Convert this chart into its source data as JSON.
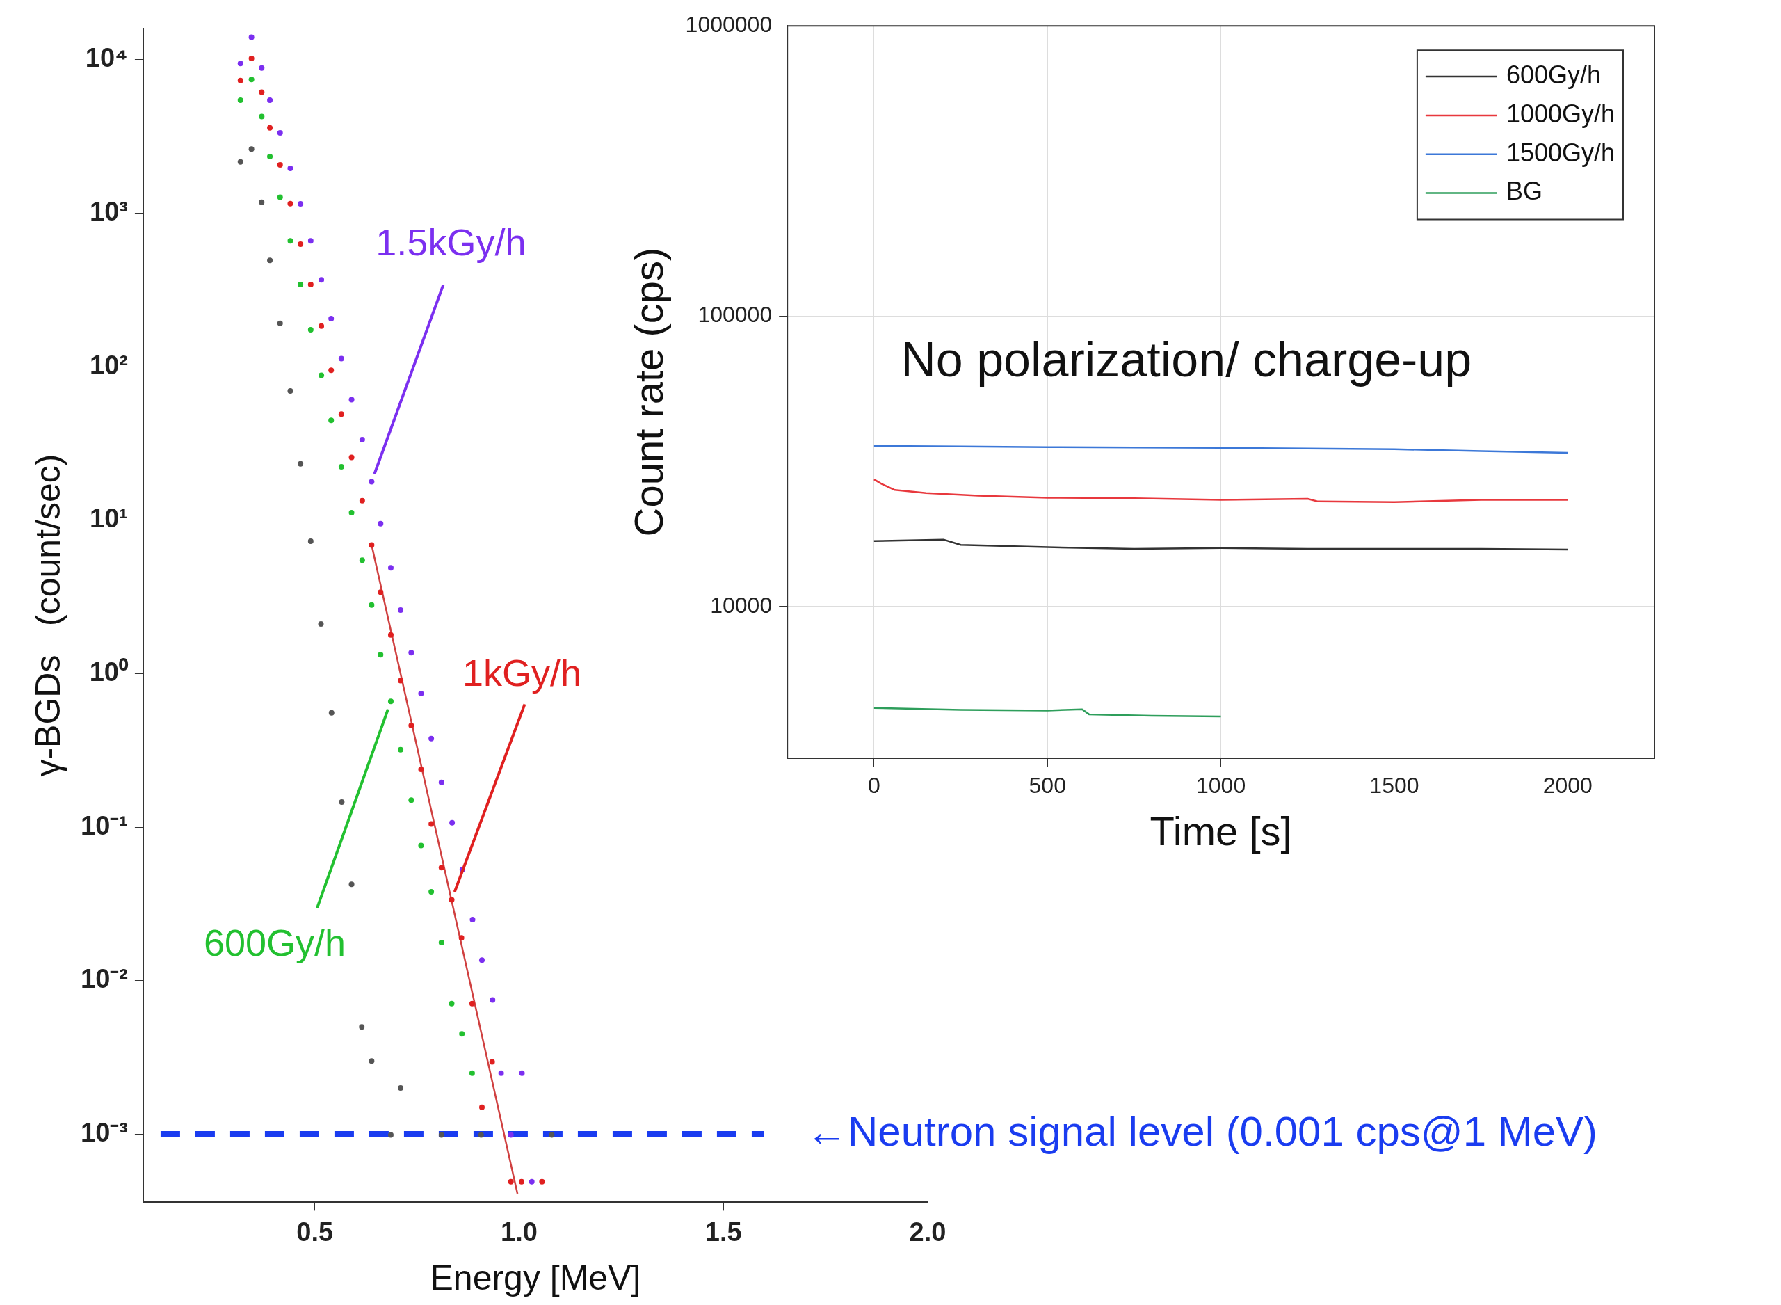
{
  "chart_data": [
    {
      "type": "scatter",
      "xlabel": "Energy [MeV]",
      "ylabel": "γ-BGDs   (count/sec)",
      "log": "y",
      "xlim": [
        0.08,
        2.0
      ],
      "xticks": [
        0.5,
        {
          "value": 1,
          "label": "1.0"
        },
        1.5,
        {
          "value": 2,
          "label": "2.0"
        }
      ],
      "ylim": [
        0.00036,
        16000
      ],
      "yticks": [
        {
          "value": 0.001,
          "label": "10⁻³"
        },
        {
          "value": 0.01,
          "label": "10⁻²"
        },
        {
          "value": 0.1,
          "label": "10⁻¹"
        },
        {
          "value": 1,
          "label": "10⁰"
        },
        {
          "value": 10,
          "label": "10¹"
        },
        {
          "value": 100,
          "label": "10²"
        },
        {
          "value": 1000,
          "label": "10³"
        },
        {
          "value": 10000,
          "label": "10⁴"
        }
      ],
      "marker": "circle",
      "series": [
        {
          "name": "1.5kGy/h",
          "color": "#7b2ff0",
          "x": [
            0.318,
            0.345,
            0.37,
            0.39,
            0.415,
            0.44,
            0.465,
            0.49,
            0.516,
            0.54,
            0.565,
            0.59,
            0.616,
            0.639,
            0.661,
            0.686,
            0.71,
            0.736,
            0.76,
            0.785,
            0.81,
            0.836,
            0.861,
            0.886,
            0.909,
            0.935,
            0.956,
            0.98,
            1.007,
            1.031
          ],
          "values": [
            9460,
            14000,
            8830,
            5450,
            3340,
            1960,
            1150,
            661,
            368,
            206,
            113,
            61,
            33.5,
            17.8,
            9.5,
            4.9,
            2.6,
            1.37,
            0.743,
            0.378,
            0.196,
            0.107,
            0.053,
            0.025,
            0.0136,
            0.0075,
            0.0025,
            0.00099,
            0.0025,
            0.00049
          ]
        },
        {
          "name": "1kGy/h",
          "color": "#e02020",
          "x": [
            0.318,
            0.345,
            0.37,
            0.39,
            0.415,
            0.44,
            0.465,
            0.49,
            0.516,
            0.54,
            0.565,
            0.59,
            0.616,
            0.639,
            0.661,
            0.686,
            0.71,
            0.736,
            0.76,
            0.785,
            0.81,
            0.835,
            0.859,
            0.885,
            0.909,
            0.934,
            0.98,
            1.006,
            1.056
          ],
          "values": [
            7310,
            10200,
            6150,
            3600,
            2065,
            1155,
            628,
            343,
            184,
            94.8,
            49.2,
            25.7,
            13.4,
            6.9,
            3.4,
            1.79,
            0.9,
            0.46,
            0.238,
            0.105,
            0.0546,
            0.0337,
            0.019,
            0.0071,
            0.0015,
            0.00296,
            0.00049,
            0.00049,
            0.00049
          ]
        },
        {
          "name": "600Gy/h",
          "color": "#22c030",
          "x": [
            0.318,
            0.345,
            0.37,
            0.39,
            0.415,
            0.44,
            0.465,
            0.49,
            0.516,
            0.54,
            0.565,
            0.59,
            0.616,
            0.639,
            0.661,
            0.686,
            0.71,
            0.736,
            0.76,
            0.785,
            0.81,
            0.835,
            0.86,
            0.885
          ],
          "values": [
            5450,
            7430,
            4260,
            2340,
            1270,
            661,
            343,
            174,
            87.9,
            44.7,
            22.3,
            11.2,
            5.5,
            2.8,
            1.33,
            0.66,
            0.32,
            0.15,
            0.076,
            0.038,
            0.0177,
            0.0071,
            0.0045,
            0.0025
          ]
        },
        {
          "color": "#555555",
          "x": [
            0.318,
            0.345,
            0.37,
            0.39,
            0.415,
            0.44,
            0.465,
            0.49,
            0.515,
            0.541,
            0.566,
            0.59,
            0.615,
            0.639,
            0.686,
            0.71,
            0.81,
            0.907,
            1.08
          ],
          "values": [
            2160,
            2620,
            1180,
            493,
            192,
            69.5,
            23.3,
            7.3,
            2.11,
            0.556,
            0.146,
            0.0425,
            0.005,
            0.003,
            0.00099,
            0.002,
            0.00099,
            0.00099,
            0.00099
          ]
        },
        {
          "type": "line",
          "marker": "none",
          "color": "#d04040",
          "x": [
            0.639,
            0.996
          ],
          "values": [
            6.9,
            0.00041
          ]
        }
      ],
      "ref_lines": [
        {
          "axis": "y",
          "value": 0.001,
          "label": "←Neutron signal level (0.001 cps@1 MeV)",
          "color": "#1a3cf0",
          "line_style": "dashed"
        }
      ]
    },
    {
      "type": "line",
      "xlabel": "Time [s]",
      "ylabel": "Count rate (cps)",
      "log": "y",
      "xlim": [
        -250,
        2250
      ],
      "xticks": [
        0,
        500,
        1000,
        1500,
        2000
      ],
      "ylim": [
        3000,
        1000000
      ],
      "yticks": [
        10000,
        100000,
        1000000
      ],
      "grid": true,
      "legend": "top right",
      "marker": "none",
      "annotations": [
        "No polarization/ charge-up"
      ],
      "series": [
        {
          "name": "600Gy/h",
          "color": "#333333",
          "x": [
            0,
            200,
            250,
            500,
            750,
            1000,
            1250,
            1500,
            1750,
            2000
          ],
          "values": [
            16800,
            17000,
            16300,
            16000,
            15800,
            15900,
            15800,
            15800,
            15800,
            15700
          ]
        },
        {
          "name": "1000Gy/h",
          "color": "#e8383d",
          "x": [
            0,
            20,
            60,
            150,
            300,
            500,
            750,
            1000,
            1250,
            1280,
            1500,
            1750,
            2000
          ],
          "values": [
            27400,
            26500,
            25200,
            24600,
            24100,
            23700,
            23600,
            23300,
            23500,
            23000,
            22900,
            23300,
            23300
          ]
        },
        {
          "name": "1500Gy/h",
          "color": "#3c78d8",
          "x": [
            0,
            100,
            250,
            500,
            750,
            1000,
            1250,
            1500,
            1750,
            2000
          ],
          "values": [
            35800,
            35700,
            35600,
            35400,
            35300,
            35200,
            35000,
            34800,
            34300,
            33800
          ]
        },
        {
          "name": "BG",
          "color": "#2e9e5b",
          "x": [
            0,
            250,
            500,
            600,
            620,
            800,
            1000
          ],
          "values": [
            4470,
            4400,
            4380,
            4420,
            4250,
            4200,
            4180
          ]
        }
      ]
    }
  ]
}
